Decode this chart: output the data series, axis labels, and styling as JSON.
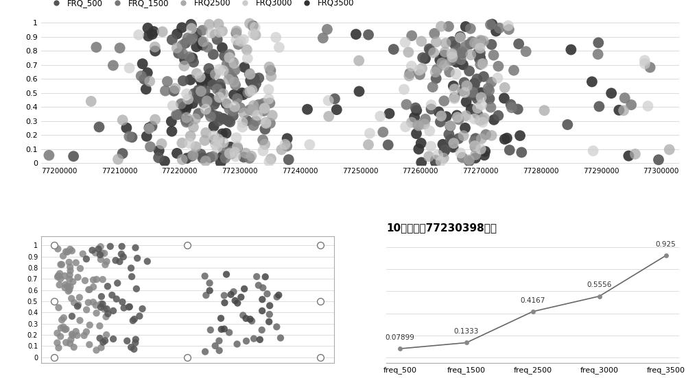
{
  "top_plot": {
    "xlim": [
      77197000,
      77303000
    ],
    "ylim": [
      -0.02,
      1.08
    ],
    "xticks": [
      77200000,
      77210000,
      77220000,
      77230000,
      77240000,
      77250000,
      77260000,
      77270000,
      77280000,
      77290000,
      77300000
    ],
    "yticks": [
      0,
      0.1,
      0.2,
      0.3,
      0.4,
      0.5,
      0.6,
      0.7,
      0.8,
      0.9,
      1
    ],
    "legend_labels": [
      "FRQ_500",
      "FRQ_1500",
      "FRQ2500",
      "FRQ3000",
      "FRQ3500"
    ],
    "colors": [
      "#555555",
      "#777777",
      "#aaaaaa",
      "#cccccc",
      "#333333"
    ],
    "alphas": [
      0.9,
      0.85,
      0.75,
      0.7,
      0.9
    ]
  },
  "bottom_left": {
    "xlim": [
      -0.05,
      1.05
    ],
    "ylim": [
      -0.05,
      1.08
    ]
  },
  "bottom_right": {
    "title": "10号染色䥇77230398位点",
    "x_labels": [
      "freq_500",
      "freq_1500",
      "freq_2500",
      "freq_3000",
      "freq_3500"
    ],
    "y_values": [
      0.07899,
      0.1333,
      0.4167,
      0.5556,
      0.925
    ],
    "line_color": "#666666",
    "marker_color": "#888888"
  },
  "background_color": "#ffffff",
  "grid_color": "#dddddd"
}
